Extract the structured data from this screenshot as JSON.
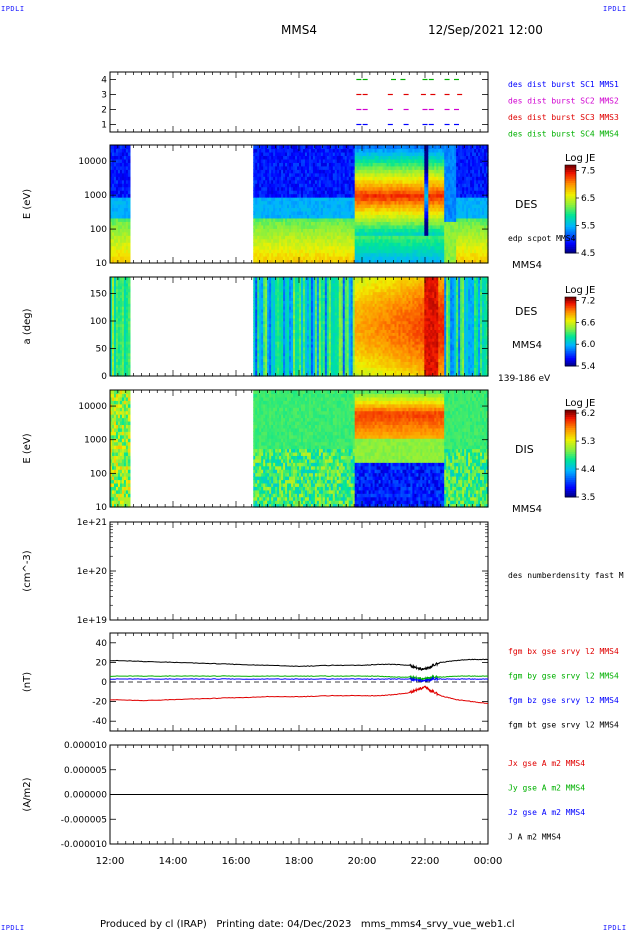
{
  "header": {
    "corner_tl": "IPDLI",
    "corner_tr": "IPDLI",
    "corner_bl": "IPDLI",
    "corner_br": "IPDLI",
    "spacecraft": "MMS4",
    "datetime": "12/Sep/2021 12:00"
  },
  "footer": {
    "text": "Produced by cl (IRAP)   Printing date: 04/Dec/2023   mms_mms4_srvy_vue_web1.cl"
  },
  "colors": {
    "blue": "#0000ff",
    "magenta": "#d000d0",
    "red": "#e00000",
    "green": "#00b000",
    "black": "#000000"
  },
  "chart_data": [
    {
      "type": "scatter",
      "id": "burst",
      "ylim": [
        0.5,
        4.5
      ],
      "yticks": [
        "1",
        "2",
        "3",
        "4"
      ],
      "legend": [
        {
          "text": "des dist burst SC1 MMS1",
          "color": "blue"
        },
        {
          "text": "des dist burst SC2 MMS2",
          "color": "magenta"
        },
        {
          "text": "des dist burst SC3 MMS3",
          "color": "red"
        },
        {
          "text": "des dist burst SC4 MMS4",
          "color": "green"
        }
      ],
      "series": [
        {
          "sc": 4,
          "color": "green",
          "x": [
            19.9,
            20.1,
            21.0,
            21.3,
            22.0,
            22.2,
            22.7,
            23.0
          ]
        },
        {
          "sc": 3,
          "color": "red",
          "x": [
            19.9,
            20.1,
            20.9,
            21.4,
            21.95,
            22.25,
            22.7,
            23.1
          ]
        },
        {
          "sc": 2,
          "color": "magenta",
          "x": [
            19.9,
            20.1,
            20.9,
            21.4,
            22.0,
            22.2,
            22.7,
            23.0
          ]
        },
        {
          "sc": 1,
          "color": "blue",
          "x": [
            19.9,
            20.1,
            20.9,
            21.4,
            22.0,
            22.2,
            22.7,
            23.0
          ]
        }
      ]
    },
    {
      "type": "heatmap",
      "id": "des_energy",
      "ylabel": "E (eV)",
      "log": true,
      "ylim": [
        10,
        30000
      ],
      "yticks": [
        "10",
        "100",
        "1000",
        "10000"
      ],
      "label": "DES",
      "side_note": "edp scpot MMS4",
      "bottom_note": "MMS4",
      "colorbar": {
        "title": "Log JE",
        "range": [
          4.5,
          7.7
        ],
        "ticks": [
          "4.5",
          "5.5",
          "6.5",
          "7.5"
        ]
      },
      "data_gaps": [
        [
          12.65,
          16.55
        ]
      ]
    },
    {
      "type": "heatmap",
      "id": "des_pitch",
      "ylabel": "a (deg)",
      "ylim": [
        0,
        180
      ],
      "yticks": [
        "0",
        "50",
        "100",
        "150"
      ],
      "label": "DES",
      "label2": "MMS4",
      "bottom_note": "139-186 eV",
      "colorbar": {
        "title": "Log JE",
        "range": [
          5.4,
          7.3
        ],
        "ticks": [
          "5.4",
          "6.0",
          "6.6",
          "7.2"
        ]
      },
      "data_gaps": [
        [
          12.65,
          16.55
        ]
      ]
    },
    {
      "type": "heatmap",
      "id": "dis_energy",
      "ylabel": "E (eV)",
      "log": true,
      "ylim": [
        10,
        30000
      ],
      "yticks": [
        "10",
        "100",
        "1000",
        "10000"
      ],
      "label": "DIS",
      "bottom_note": "MMS4",
      "colorbar": {
        "title": "Log JE",
        "range": [
          3.5,
          6.3
        ],
        "ticks": [
          "3.5",
          "4.4",
          "5.3",
          "6.2"
        ]
      },
      "data_gaps": [
        [
          12.65,
          16.55
        ]
      ]
    },
    {
      "type": "line",
      "id": "density",
      "ylabel": "(cm^-3)",
      "log": true,
      "yticks": [
        "1e+19",
        "1e+20",
        "1e+21"
      ],
      "legend": [
        {
          "text": "des numberdensity fast M",
          "color": "black"
        }
      ]
    },
    {
      "type": "line",
      "id": "bfield",
      "ylabel": "(nT)",
      "ylim": [
        -50,
        50
      ],
      "yticks": [
        "-40",
        "-20",
        "0",
        "20",
        "40"
      ],
      "legend": [
        {
          "text": "fgm bx gse srvy l2 MMS4",
          "color": "red"
        },
        {
          "text": "fgm by gse srvy l2 MMS4",
          "color": "green"
        },
        {
          "text": "fgm bz gse srvy l2 MMS4",
          "color": "blue"
        },
        {
          "text": "fgm bt gse srvy l2 MMS4",
          "color": "black"
        }
      ],
      "x": [
        12,
        13,
        14,
        15,
        16,
        17,
        18,
        19,
        20,
        20.5,
        21,
        21.5,
        21.8,
        22,
        22.2,
        22.5,
        23,
        23.5,
        24
      ],
      "series": [
        {
          "name": "bt",
          "color": "black",
          "values": [
            22,
            21,
            20,
            19,
            18,
            17,
            16,
            17,
            17,
            18,
            18,
            17,
            14,
            13,
            16,
            20,
            22,
            23,
            23
          ]
        },
        {
          "name": "by",
          "color": "green",
          "values": [
            6,
            6,
            6,
            6,
            6,
            6,
            6,
            6,
            6,
            6,
            5,
            5,
            4,
            3,
            5,
            5,
            6,
            6,
            6
          ]
        },
        {
          "name": "bz",
          "color": "blue",
          "values": [
            3,
            3,
            3,
            3,
            3,
            3,
            3,
            3,
            3,
            3,
            3,
            3,
            2,
            1,
            3,
            3,
            3,
            3,
            3
          ]
        },
        {
          "name": "bx",
          "color": "red",
          "values": [
            -18,
            -19,
            -18,
            -17,
            -16,
            -15,
            -15,
            -14,
            -14,
            -14,
            -13,
            -11,
            -7,
            -5,
            -9,
            -14,
            -18,
            -20,
            -22
          ]
        }
      ]
    },
    {
      "type": "line",
      "id": "current",
      "ylabel": "(A/m2)",
      "ylim": [
        -1e-05,
        1e-05
      ],
      "yticks": [
        "-0.000010",
        "-0.000005",
        "0.000000",
        "0.000005",
        "0.000010"
      ],
      "legend": [
        {
          "text": "Jx gse A m2 MMS4",
          "color": "red"
        },
        {
          "text": "Jy gse A m2 MMS4",
          "color": "green"
        },
        {
          "text": "Jz gse A m2 MMS4",
          "color": "blue"
        },
        {
          "text": "J A m2 MMS4",
          "color": "black"
        }
      ],
      "series": [
        {
          "name": "J",
          "color": "black",
          "x": [
            12,
            24
          ],
          "values": [
            0,
            0
          ]
        }
      ]
    }
  ],
  "xaxis": {
    "ticks": [
      "12:00",
      "14:00",
      "16:00",
      "18:00",
      "20:00",
      "22:00",
      "00:00"
    ],
    "range": [
      12,
      24
    ]
  }
}
